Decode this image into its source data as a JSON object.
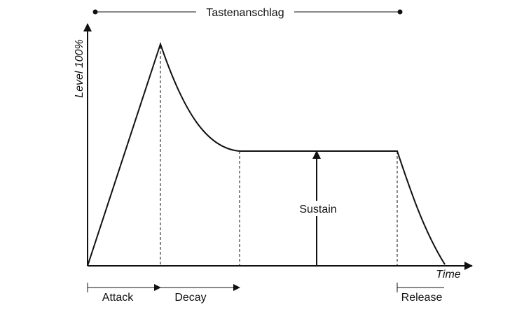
{
  "header": {
    "title": "Tastenanschlag"
  },
  "axes": {
    "y_label": "Level 100%",
    "x_label": "Time"
  },
  "annotations": {
    "sustain": "Sustain"
  },
  "phases": [
    "Attack",
    "Decay",
    "Release"
  ]
}
